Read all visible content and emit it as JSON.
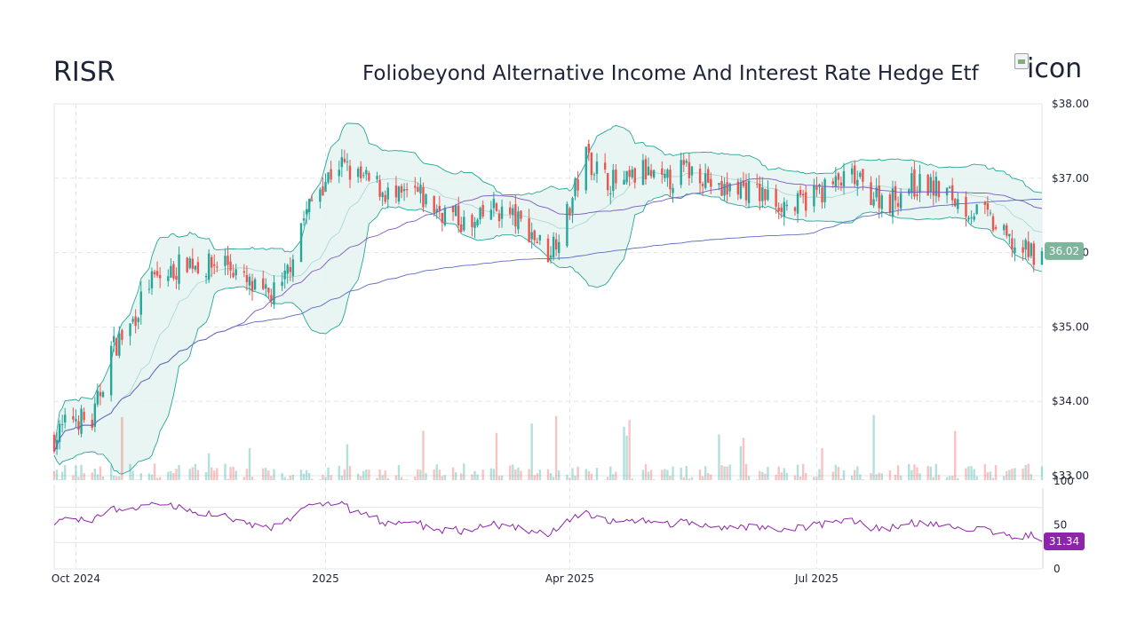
{
  "header": {
    "ticker": "RISR",
    "fund_name": "Foliobeyond Alternative Income And Interest Rate Hedge Etf",
    "logo_alt": "icon"
  },
  "colors": {
    "up": "#26a69a",
    "down": "#ef5350",
    "band_fill": "#e6f4f1",
    "band_line": "#26a69a",
    "sma_long": "#5c6bc0",
    "sma_mid": "#7e57c2",
    "rsi": "#8e24aa",
    "grid": "#e0e6ea"
  },
  "chart_data": {
    "type": "candlestick",
    "price_axis": {
      "ticks": [
        33,
        34,
        35,
        36,
        37,
        38
      ],
      "tick_labels": [
        "$33.00",
        "$34.00",
        "$35.00",
        "$36.00",
        "$37.00",
        "$38.00"
      ],
      "range": [
        33,
        38
      ]
    },
    "time_axis": {
      "range": [
        "2024-09-23",
        "2025-09-22"
      ],
      "ticks": [
        "2024-10-01",
        "2025-01-01",
        "2025-04-01",
        "2025-07-01"
      ],
      "tick_labels": [
        "Oct 2024",
        "2025",
        "Apr 2025",
        "Jul 2025"
      ]
    },
    "last_price": 36.02,
    "last_price_label": "36.02",
    "rsi": {
      "ticks": [
        0,
        50,
        100
      ],
      "tick_labels": [
        "0",
        "50",
        "100"
      ],
      "range": [
        0,
        100
      ],
      "guide_levels": [
        30,
        70
      ],
      "last_value": 31.34,
      "last_value_label": "31.34"
    },
    "overlays": [
      "Bollinger Bands",
      "Moving average (mid)",
      "Moving average (long)"
    ],
    "price_anchors": [
      [
        "2024-09-23",
        33.5
      ],
      [
        "2024-09-30",
        33.8
      ],
      [
        "2024-10-07",
        33.7
      ],
      [
        "2024-10-14",
        34.7
      ],
      [
        "2024-10-21",
        35.0
      ],
      [
        "2024-10-28",
        35.6
      ],
      [
        "2024-11-04",
        35.7
      ],
      [
        "2024-11-11",
        35.9
      ],
      [
        "2024-11-18",
        35.8
      ],
      [
        "2024-11-25",
        35.9
      ],
      [
        "2024-12-02",
        35.6
      ],
      [
        "2024-12-09",
        35.4
      ],
      [
        "2024-12-16",
        35.5
      ],
      [
        "2024-12-23",
        36.4
      ],
      [
        "2024-12-30",
        36.9
      ],
      [
        "2025-01-06",
        37.2
      ],
      [
        "2025-01-13",
        37.0
      ],
      [
        "2025-01-20",
        36.9
      ],
      [
        "2025-01-27",
        36.7
      ],
      [
        "2025-02-03",
        36.8
      ],
      [
        "2025-02-10",
        36.6
      ],
      [
        "2025-02-17",
        36.5
      ],
      [
        "2025-02-24",
        36.3
      ],
      [
        "2025-03-03",
        36.6
      ],
      [
        "2025-03-10",
        36.5
      ],
      [
        "2025-03-17",
        36.3
      ],
      [
        "2025-03-24",
        36.0
      ],
      [
        "2025-03-31",
        36.5
      ],
      [
        "2025-04-07",
        37.3
      ],
      [
        "2025-04-14",
        37.0
      ],
      [
        "2025-04-21",
        36.9
      ],
      [
        "2025-04-28",
        37.1
      ],
      [
        "2025-05-05",
        36.9
      ],
      [
        "2025-05-12",
        37.1
      ],
      [
        "2025-05-19",
        37.1
      ],
      [
        "2025-05-26",
        36.8
      ],
      [
        "2025-06-02",
        36.9
      ],
      [
        "2025-06-09",
        36.8
      ],
      [
        "2025-06-16",
        36.7
      ],
      [
        "2025-06-23",
        36.6
      ],
      [
        "2025-06-30",
        36.8
      ],
      [
        "2025-07-07",
        36.9
      ],
      [
        "2025-07-14",
        37.0
      ],
      [
        "2025-07-21",
        36.8
      ],
      [
        "2025-07-28",
        36.7
      ],
      [
        "2025-08-04",
        36.9
      ],
      [
        "2025-08-11",
        36.9
      ],
      [
        "2025-08-18",
        36.8
      ],
      [
        "2025-08-25",
        36.6
      ],
      [
        "2025-09-01",
        36.5
      ],
      [
        "2025-09-08",
        36.2
      ],
      [
        "2025-09-15",
        36.0
      ],
      [
        "2025-09-22",
        36.02
      ]
    ]
  }
}
